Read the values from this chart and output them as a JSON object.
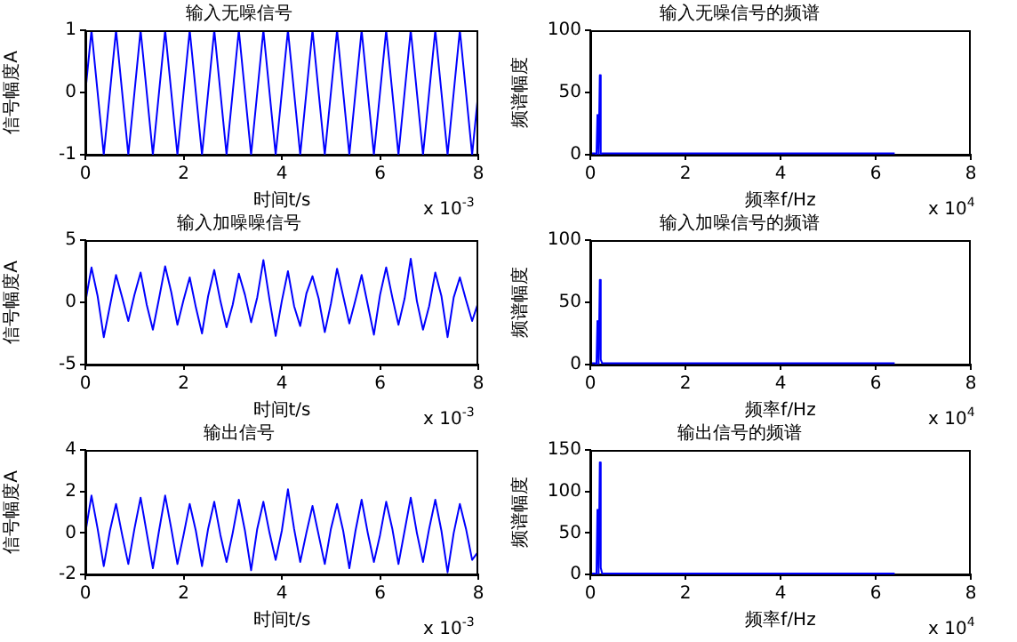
{
  "chart_data": [
    {
      "type": "line",
      "title": "输入无噪信号",
      "xlabel": "时间t/s",
      "ylabel": "信号幅度A",
      "annotations": [
        "x 10$^{-3}$"
      ],
      "legend": false,
      "grid": false,
      "marker": "none",
      "xlim": [
        0,
        8
      ],
      "xticks": [
        0,
        2,
        4,
        6,
        8
      ],
      "ylim": [
        -1,
        1
      ],
      "yticks": [
        -1,
        0,
        1
      ],
      "x": [
        0,
        0.125,
        0.25,
        0.375,
        0.5,
        0.625,
        0.75,
        0.875,
        1,
        1.125,
        1.25,
        1.375,
        1.5,
        1.625,
        1.75,
        1.875,
        2,
        2.125,
        2.25,
        2.375,
        2.5,
        2.625,
        2.75,
        2.875,
        3,
        3.125,
        3.25,
        3.375,
        3.5,
        3.625,
        3.75,
        3.875,
        4,
        4.125,
        4.25,
        4.375,
        4.5,
        4.625,
        4.75,
        4.875,
        5,
        5.125,
        5.25,
        5.375,
        5.5,
        5.625,
        5.75,
        5.875,
        6,
        6.125,
        6.25,
        6.375,
        6.5,
        6.625,
        6.75,
        6.875,
        7,
        7.125,
        7.25,
        7.375,
        7.5,
        7.625,
        7.75,
        7.875,
        8
      ],
      "series": [
        {
          "color": "#0000ff",
          "values": [
            0,
            1,
            0,
            -1,
            0,
            1,
            0,
            -1,
            0,
            1,
            0,
            -1,
            0,
            1,
            0,
            -1,
            0,
            1,
            0,
            -1,
            0,
            1,
            0,
            -1,
            0,
            1,
            0,
            -1,
            0,
            1,
            0,
            -1,
            0,
            1,
            0,
            -1,
            0,
            1,
            0,
            -1,
            0,
            1,
            0,
            -1,
            0,
            1,
            0,
            -1,
            0,
            1,
            0,
            -1,
            0,
            1,
            0,
            -1,
            0,
            1,
            0,
            -1,
            0,
            1,
            0,
            -1,
            0
          ]
        }
      ]
    },
    {
      "type": "line",
      "title": "输入无噪信号的频谱",
      "xlabel": "频率f/Hz",
      "ylabel": "频谱幅度",
      "annotations": [
        "x 10$^{4}$"
      ],
      "legend": false,
      "grid": false,
      "marker": "none",
      "xlim": [
        0,
        8
      ],
      "xticks": [
        0,
        2,
        4,
        6,
        8
      ],
      "ylim": [
        0,
        100
      ],
      "yticks": [
        0,
        50,
        100
      ],
      "x": [
        0,
        0.1,
        0.13,
        0.15,
        0.17,
        0.18,
        0.2,
        0.22,
        0.25,
        1,
        2,
        3,
        4,
        5,
        6,
        6.4
      ],
      "series": [
        {
          "color": "#0000ff",
          "values": [
            1,
            1,
            0,
            32,
            0,
            0,
            64,
            0,
            1,
            1,
            1,
            1,
            1,
            1,
            1,
            1
          ]
        }
      ]
    },
    {
      "type": "line",
      "title": "输入加噪噪信号",
      "xlabel": "时间t/s",
      "ylabel": "信号幅度A",
      "annotations": [
        "x 10$^{-3}$"
      ],
      "legend": false,
      "grid": false,
      "marker": "none",
      "xlim": [
        0,
        8
      ],
      "xticks": [
        0,
        2,
        4,
        6,
        8
      ],
      "ylim": [
        -5,
        5
      ],
      "yticks": [
        -5,
        0,
        5
      ],
      "x": [
        0,
        0.125,
        0.25,
        0.375,
        0.5,
        0.625,
        0.75,
        0.875,
        1,
        1.125,
        1.25,
        1.375,
        1.5,
        1.625,
        1.75,
        1.875,
        2,
        2.125,
        2.25,
        2.375,
        2.5,
        2.625,
        2.75,
        2.875,
        3,
        3.125,
        3.25,
        3.375,
        3.5,
        3.625,
        3.75,
        3.875,
        4,
        4.125,
        4.25,
        4.375,
        4.5,
        4.625,
        4.75,
        4.875,
        5,
        5.125,
        5.25,
        5.375,
        5.5,
        5.625,
        5.75,
        5.875,
        6,
        6.125,
        6.25,
        6.375,
        6.5,
        6.625,
        6.75,
        6.875,
        7,
        7.125,
        7.25,
        7.375,
        7.5,
        7.625,
        7.75,
        7.875,
        8
      ],
      "series": [
        {
          "color": "#0000ff",
          "values": [
            0,
            2.8,
            0.5,
            -2.8,
            -0.3,
            2.2,
            0.4,
            -1.5,
            0.6,
            2.4,
            -0.2,
            -2.2,
            0.3,
            2.9,
            0.8,
            -1.8,
            0.2,
            2.0,
            -0.4,
            -2.5,
            0.5,
            2.6,
            0.1,
            -2.0,
            -0.2,
            2.3,
            0.6,
            -1.6,
            0.4,
            3.4,
            0.2,
            -2.7,
            0.1,
            2.5,
            -0.3,
            -1.9,
            0.7,
            2.1,
            0.3,
            -2.4,
            -0.1,
            2.7,
            0.5,
            -1.7,
            0.2,
            2.2,
            -0.2,
            -2.6,
            0.6,
            2.8,
            0.4,
            -1.8,
            0.3,
            3.5,
            0.1,
            -2.2,
            -0.3,
            2.4,
            0.5,
            -2.8,
            0.4,
            2.0,
            0.2,
            -1.5,
            0
          ]
        }
      ]
    },
    {
      "type": "line",
      "title": "输入加噪信号的频谱",
      "xlabel": "频率f/Hz",
      "ylabel": "频谱幅度",
      "annotations": [
        "x 10$^{4}$"
      ],
      "legend": false,
      "grid": false,
      "marker": "none",
      "xlim": [
        0,
        8
      ],
      "xticks": [
        0,
        2,
        4,
        6,
        8
      ],
      "ylim": [
        0,
        100
      ],
      "yticks": [
        0,
        50,
        100
      ],
      "x": [
        0,
        0.1,
        0.13,
        0.15,
        0.17,
        0.18,
        0.2,
        0.22,
        0.25,
        1,
        2,
        3,
        4,
        5,
        6,
        6.4
      ],
      "series": [
        {
          "color": "#0000ff",
          "values": [
            1,
            1,
            0,
            35,
            0,
            0,
            68,
            4,
            1,
            1,
            1,
            1,
            1,
            1,
            1,
            1
          ]
        }
      ]
    },
    {
      "type": "line",
      "title": "输出信号",
      "xlabel": "时间t/s",
      "ylabel": "信号幅度A",
      "annotations": [
        "x 10$^{-3}$"
      ],
      "legend": false,
      "grid": false,
      "marker": "none",
      "xlim": [
        0,
        8
      ],
      "xticks": [
        0,
        2,
        4,
        6,
        8
      ],
      "ylim": [
        -2,
        4
      ],
      "yticks": [
        -2,
        0,
        2,
        4
      ],
      "x": [
        0,
        0.125,
        0.25,
        0.375,
        0.5,
        0.625,
        0.75,
        0.875,
        1,
        1.125,
        1.25,
        1.375,
        1.5,
        1.625,
        1.75,
        1.875,
        2,
        2.125,
        2.25,
        2.375,
        2.5,
        2.625,
        2.75,
        2.875,
        3,
        3.125,
        3.25,
        3.375,
        3.5,
        3.625,
        3.75,
        3.875,
        4,
        4.125,
        4.25,
        4.375,
        4.5,
        4.625,
        4.75,
        4.875,
        5,
        5.125,
        5.25,
        5.375,
        5.5,
        5.625,
        5.75,
        5.875,
        6,
        6.125,
        6.25,
        6.375,
        6.5,
        6.625,
        6.75,
        6.875,
        7,
        7.125,
        7.25,
        7.375,
        7.5,
        7.625,
        7.75,
        7.875,
        8
      ],
      "series": [
        {
          "color": "#0000ff",
          "values": [
            0,
            1.8,
            0.2,
            -1.6,
            0.1,
            1.4,
            -0.1,
            -1.5,
            0.2,
            1.7,
            0,
            -1.7,
            0.1,
            1.8,
            0.2,
            -1.5,
            -0.1,
            1.4,
            0.1,
            -1.6,
            0.2,
            1.5,
            -0.1,
            -1.4,
            0,
            1.6,
            0.1,
            -1.8,
            0.2,
            1.5,
            0,
            -1.3,
            0.1,
            2.1,
            0.2,
            -1.4,
            0,
            1.3,
            -0.1,
            -1.5,
            0.2,
            1.4,
            0.1,
            -1.7,
            0.1,
            1.6,
            0,
            -1.4,
            -0.1,
            1.5,
            0.2,
            -1.5,
            0.1,
            1.7,
            0,
            -1.4,
            0.2,
            1.6,
            0.1,
            -1.9,
            0,
            1.4,
            0.2,
            -1.3,
            -0.9
          ]
        }
      ]
    },
    {
      "type": "line",
      "title": "输出信号的频谱",
      "xlabel": "频率f/Hz",
      "ylabel": "频谱幅度",
      "annotations": [
        "x 10$^{4}$"
      ],
      "legend": false,
      "grid": false,
      "marker": "none",
      "xlim": [
        0,
        8
      ],
      "xticks": [
        0,
        2,
        4,
        6,
        8
      ],
      "ylim": [
        0,
        150
      ],
      "yticks": [
        0,
        50,
        100,
        150
      ],
      "x": [
        0,
        0.1,
        0.13,
        0.15,
        0.17,
        0.18,
        0.2,
        0.22,
        0.25,
        1,
        2,
        3,
        4,
        5,
        6,
        6.4
      ],
      "series": [
        {
          "color": "#0000ff",
          "values": [
            1,
            1,
            0,
            78,
            0,
            0,
            135,
            8,
            1,
            1,
            1,
            1,
            1,
            1,
            1,
            1
          ]
        }
      ]
    }
  ]
}
